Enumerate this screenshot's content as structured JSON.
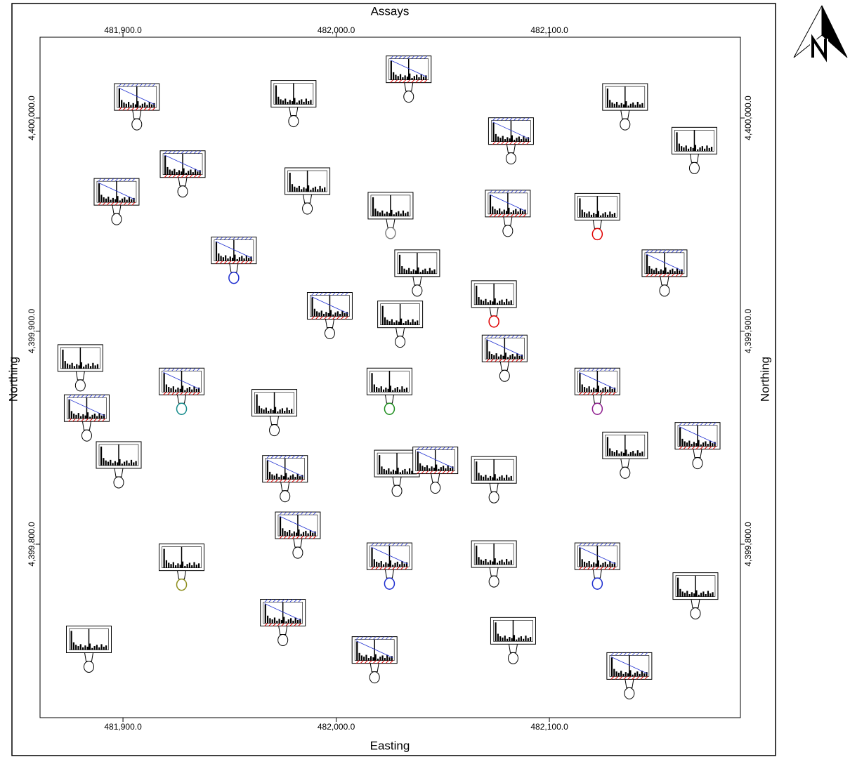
{
  "chart_data": {
    "type": "scatter",
    "title": "Assays",
    "x_label": "Easting",
    "y_label": "Northing",
    "x": [
      481906.5,
      481980,
      482034,
      482135.5,
      482082,
      482168,
      481928,
      481986.5,
      481897,
      482025.5,
      482080.5,
      482122.5,
      481952,
      482038,
      482154,
      482074,
      481997,
      482030,
      482079,
      481880,
      481927.5,
      482025,
      482122.5,
      481971,
      481883,
      482135.5,
      482169.5,
      481898,
      481976,
      482028.5,
      482046.5,
      482074,
      481982,
      481927.5,
      482025,
      482074,
      482122.5,
      482168.5,
      481975,
      481884,
      482018,
      482083,
      482137.5
    ],
    "y": [
      4399997,
      4399998.5,
      4400010,
      4399997,
      4399981,
      4399976.5,
      4399965.5,
      4399957.5,
      4399952.5,
      4399946,
      4399947,
      4399945.5,
      4399925,
      4399919,
      4399919,
      4399904.5,
      4399899,
      4399895,
      4399879,
      4399874.5,
      4399863.5,
      4399863.5,
      4399863.5,
      4399853.5,
      4399851,
      4399833.5,
      4399838,
      4399829,
      4399822.5,
      4399825,
      4399826.5,
      4399822,
      4399796,
      4399781,
      4399781.5,
      4399782.5,
      4399781.5,
      4399767.5,
      4399755,
      4399742.5,
      4399737.5,
      4399746.5,
      4399730
    ],
    "colors": [
      "#000000",
      "#000000",
      "#000000",
      "#000000",
      "#000000",
      "#000000",
      "#000000",
      "#000000",
      "#000000",
      "#808080",
      "#000000",
      "#e00000",
      "#1f2fd0",
      "#000000",
      "#000000",
      "#e00000",
      "#000000",
      "#000000",
      "#000000",
      "#000000",
      "#168c8c",
      "#1f8f1f",
      "#8f1f8f",
      "#000000",
      "#000000",
      "#000000",
      "#000000",
      "#000000",
      "#000000",
      "#000000",
      "#000000",
      "#000000",
      "#000000",
      "#8f8f1f",
      "#1f2fd0",
      "#000000",
      "#1f2fd0",
      "#000000",
      "#000000",
      "#000000",
      "#000000",
      "#000000",
      "#000000"
    ],
    "xlim": [
      481861.1,
      482189.6
    ],
    "ylim": [
      4399718.6,
      4400037.9
    ],
    "xticks": [
      {
        "value": 481900,
        "label": "481,900.0"
      },
      {
        "value": 482000,
        "label": "482,000.0"
      },
      {
        "value": 482100,
        "label": "482,100.0"
      }
    ],
    "yticks": [
      {
        "value": 4399800,
        "label": "4,399,800.0"
      },
      {
        "value": 4399900,
        "label": "4,399,900.0"
      },
      {
        "value": 4400000,
        "label": "4,400,000.0"
      }
    ]
  }
}
